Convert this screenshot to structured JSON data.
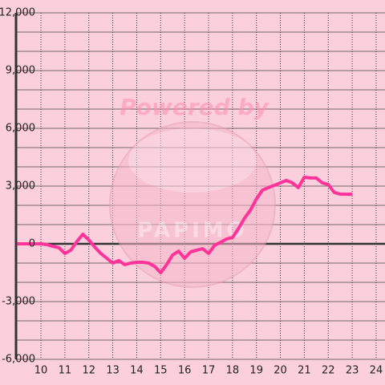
{
  "chart_data": {
    "type": "line",
    "watermark": {
      "line1": "Powered by",
      "line2": "PAPIMO"
    },
    "x": [
      9,
      9.25,
      9.5,
      9.75,
      10,
      10.25,
      10.5,
      10.75,
      11,
      11.25,
      11.5,
      11.75,
      12,
      12.25,
      12.5,
      12.75,
      13,
      13.25,
      13.5,
      13.75,
      14,
      14.25,
      14.5,
      14.75,
      15,
      15.25,
      15.5,
      15.75,
      16,
      16.25,
      16.5,
      16.75,
      17,
      17.25,
      17.5,
      17.75,
      18,
      18.25,
      18.5,
      18.75,
      19,
      19.25,
      19.5,
      19.75,
      20,
      20.25,
      20.5,
      20.75,
      21,
      21.25,
      21.5,
      21.75,
      22,
      22.25,
      22.5,
      22.75,
      23
    ],
    "series": [
      {
        "color": "#ff3399",
        "values": [
          0,
          0,
          0,
          0,
          0,
          -40,
          -130,
          -200,
          -500,
          -330,
          120,
          500,
          200,
          -170,
          -500,
          -750,
          -1000,
          -870,
          -1080,
          -1000,
          -960,
          -960,
          -1000,
          -1170,
          -1500,
          -1080,
          -580,
          -380,
          -750,
          -420,
          -330,
          -250,
          -500,
          -80,
          80,
          250,
          330,
          790,
          1330,
          1750,
          2330,
          2790,
          2920,
          3040,
          3170,
          3290,
          3170,
          2920,
          3460,
          3420,
          3420,
          3170,
          3080,
          2670,
          2580,
          2580,
          2580
        ]
      }
    ],
    "xlim": [
      8.96,
      24.37
    ],
    "xticks": [
      10,
      11,
      12,
      13,
      14,
      15,
      16,
      17,
      18,
      19,
      20,
      21,
      22,
      23,
      24
    ],
    "ylim": [
      -6000,
      12000
    ],
    "yticks": [
      {
        "value": -6000,
        "label": "-6,000"
      },
      {
        "value": -3000,
        "label": "-3,000"
      },
      0,
      {
        "value": 3000,
        "label": "3,000"
      },
      {
        "value": 6000,
        "label": "6,000"
      },
      {
        "value": 9000,
        "label": "9,000"
      },
      {
        "value": 12000,
        "label": "12,000"
      }
    ],
    "yminor_ticks": [
      -5000,
      -4000,
      -2000,
      -1000,
      1000,
      2000,
      4000,
      5000,
      7000,
      8000,
      10000,
      11000
    ],
    "grid": true
  }
}
